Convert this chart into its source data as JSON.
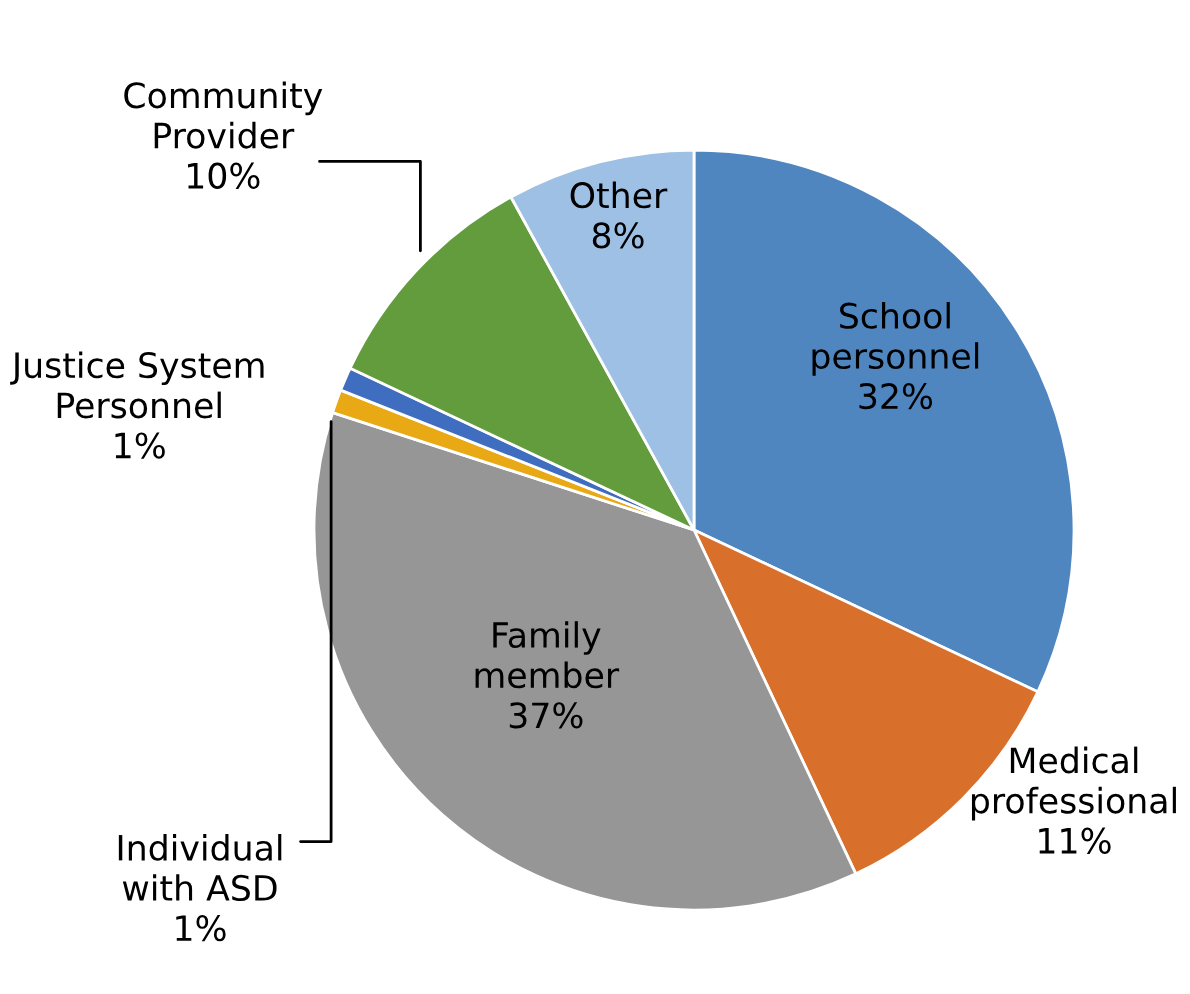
{
  "chart_data": {
    "type": "pie",
    "categories": [
      "School\npersonnel",
      "Medical\nprofessional",
      "Family\nmember",
      "Individual\nwith ASD",
      "Justice System\nPersonnel",
      "Community\nProvider",
      "Other"
    ],
    "values": [
      32,
      11,
      37,
      1,
      1,
      10,
      8
    ],
    "value_labels": [
      "32%",
      "11%",
      "37%",
      "1%",
      "1%",
      "10%",
      "8%"
    ],
    "colors": [
      "#4f86c0",
      "#d8702c",
      "#969696",
      "#e8a915",
      "#3f6dbf",
      "#629c3c",
      "#9dc0e4"
    ],
    "legend": false
  }
}
